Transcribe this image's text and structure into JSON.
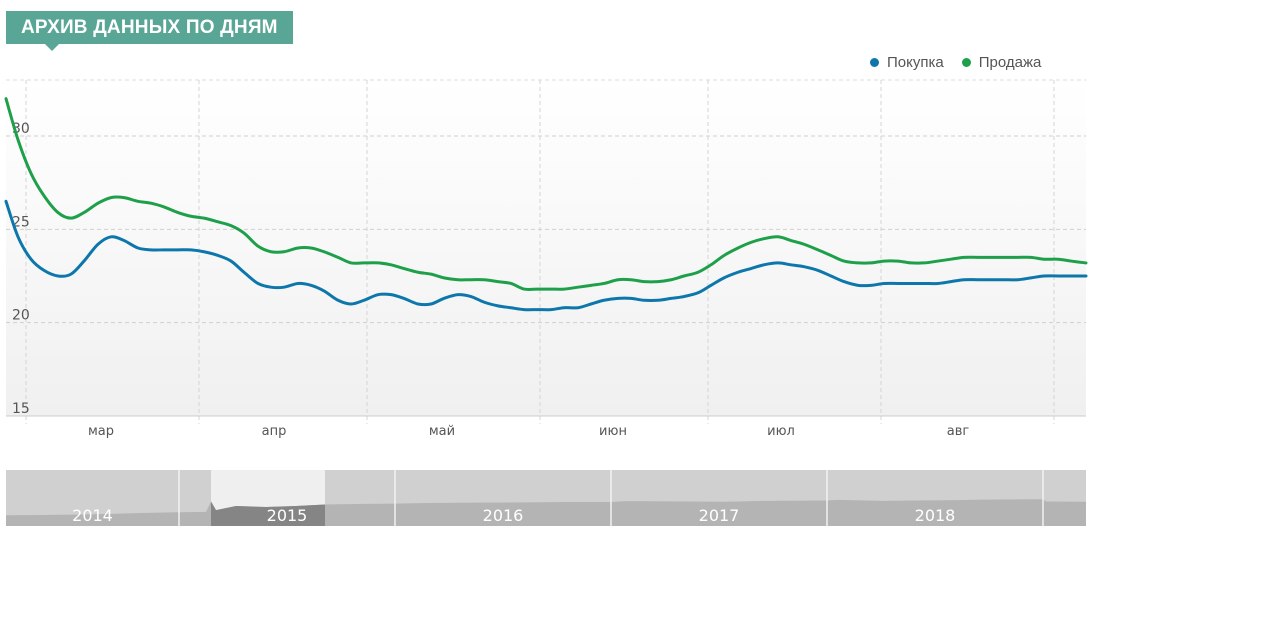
{
  "header": {
    "title": "АРХИВ ДАННЫХ ПО ДНЯМ"
  },
  "colors": {
    "accent": "#5aa696",
    "buy": "#0d77ab",
    "sell": "#1ea04a"
  },
  "chart_data": {
    "type": "line",
    "ylim": [
      15,
      33
    ],
    "yticks": [
      "15",
      "20",
      "25",
      "30"
    ],
    "xlim": [
      0,
      1080
    ],
    "grid": true,
    "legend_position": "top-right",
    "month_ticks": [
      {
        "label": "мар",
        "x": 20,
        "label_x": 101
      },
      {
        "label": "апр",
        "x": 193,
        "label_x": 274
      },
      {
        "label": "май",
        "x": 361,
        "label_x": 442
      },
      {
        "label": "июн",
        "x": 534,
        "label_x": 613
      },
      {
        "label": "июл",
        "x": 702,
        "label_x": 781
      },
      {
        "label": "авг",
        "x": 875,
        "label_x": 958
      },
      {
        "label": "",
        "x": 1048,
        "label_x": 0
      }
    ],
    "series": [
      {
        "name": "Покупка",
        "color": "#0d77ab",
        "points": [
          [
            0,
            26.5
          ],
          [
            12,
            24.6
          ],
          [
            25,
            23.4
          ],
          [
            38,
            22.8
          ],
          [
            52,
            22.5
          ],
          [
            65,
            22.6
          ],
          [
            78,
            23.3
          ],
          [
            92,
            24.2
          ],
          [
            105,
            24.6
          ],
          [
            118,
            24.4
          ],
          [
            132,
            24.0
          ],
          [
            145,
            23.9
          ],
          [
            158,
            23.9
          ],
          [
            172,
            23.9
          ],
          [
            185,
            23.9
          ],
          [
            198,
            23.8
          ],
          [
            212,
            23.6
          ],
          [
            225,
            23.3
          ],
          [
            238,
            22.7
          ],
          [
            252,
            22.1
          ],
          [
            265,
            21.9
          ],
          [
            278,
            21.9
          ],
          [
            292,
            22.1
          ],
          [
            305,
            22.0
          ],
          [
            318,
            21.7
          ],
          [
            332,
            21.2
          ],
          [
            345,
            21.0
          ],
          [
            358,
            21.2
          ],
          [
            372,
            21.5
          ],
          [
            385,
            21.5
          ],
          [
            398,
            21.3
          ],
          [
            412,
            21.0
          ],
          [
            425,
            21.0
          ],
          [
            438,
            21.3
          ],
          [
            452,
            21.5
          ],
          [
            465,
            21.4
          ],
          [
            478,
            21.1
          ],
          [
            492,
            20.9
          ],
          [
            505,
            20.8
          ],
          [
            518,
            20.7
          ],
          [
            532,
            20.7
          ],
          [
            545,
            20.7
          ],
          [
            558,
            20.8
          ],
          [
            572,
            20.8
          ],
          [
            585,
            21.0
          ],
          [
            598,
            21.2
          ],
          [
            612,
            21.3
          ],
          [
            625,
            21.3
          ],
          [
            638,
            21.2
          ],
          [
            652,
            21.2
          ],
          [
            665,
            21.3
          ],
          [
            678,
            21.4
          ],
          [
            692,
            21.6
          ],
          [
            705,
            22.0
          ],
          [
            718,
            22.4
          ],
          [
            732,
            22.7
          ],
          [
            745,
            22.9
          ],
          [
            758,
            23.1
          ],
          [
            772,
            23.2
          ],
          [
            785,
            23.1
          ],
          [
            798,
            23.0
          ],
          [
            812,
            22.8
          ],
          [
            825,
            22.5
          ],
          [
            838,
            22.2
          ],
          [
            852,
            22.0
          ],
          [
            865,
            22.0
          ],
          [
            878,
            22.1
          ],
          [
            892,
            22.1
          ],
          [
            905,
            22.1
          ],
          [
            918,
            22.1
          ],
          [
            932,
            22.1
          ],
          [
            945,
            22.2
          ],
          [
            958,
            22.3
          ],
          [
            972,
            22.3
          ],
          [
            985,
            22.3
          ],
          [
            998,
            22.3
          ],
          [
            1012,
            22.3
          ],
          [
            1025,
            22.4
          ],
          [
            1038,
            22.5
          ],
          [
            1052,
            22.5
          ],
          [
            1065,
            22.5
          ],
          [
            1080,
            22.5
          ]
        ]
      },
      {
        "name": "Продажа",
        "color": "#1ea04a",
        "points": [
          [
            0,
            32.0
          ],
          [
            12,
            29.8
          ],
          [
            25,
            28.0
          ],
          [
            38,
            26.8
          ],
          [
            52,
            25.9
          ],
          [
            65,
            25.6
          ],
          [
            78,
            25.9
          ],
          [
            92,
            26.4
          ],
          [
            105,
            26.7
          ],
          [
            118,
            26.7
          ],
          [
            132,
            26.5
          ],
          [
            145,
            26.4
          ],
          [
            158,
            26.2
          ],
          [
            172,
            25.9
          ],
          [
            185,
            25.7
          ],
          [
            198,
            25.6
          ],
          [
            212,
            25.4
          ],
          [
            225,
            25.2
          ],
          [
            238,
            24.8
          ],
          [
            252,
            24.1
          ],
          [
            265,
            23.8
          ],
          [
            278,
            23.8
          ],
          [
            292,
            24.0
          ],
          [
            305,
            24.0
          ],
          [
            318,
            23.8
          ],
          [
            332,
            23.5
          ],
          [
            345,
            23.2
          ],
          [
            358,
            23.2
          ],
          [
            372,
            23.2
          ],
          [
            385,
            23.1
          ],
          [
            398,
            22.9
          ],
          [
            412,
            22.7
          ],
          [
            425,
            22.6
          ],
          [
            438,
            22.4
          ],
          [
            452,
            22.3
          ],
          [
            465,
            22.3
          ],
          [
            478,
            22.3
          ],
          [
            492,
            22.2
          ],
          [
            505,
            22.1
          ],
          [
            518,
            21.8
          ],
          [
            532,
            21.8
          ],
          [
            545,
            21.8
          ],
          [
            558,
            21.8
          ],
          [
            572,
            21.9
          ],
          [
            585,
            22.0
          ],
          [
            598,
            22.1
          ],
          [
            612,
            22.3
          ],
          [
            625,
            22.3
          ],
          [
            638,
            22.2
          ],
          [
            652,
            22.2
          ],
          [
            665,
            22.3
          ],
          [
            678,
            22.5
          ],
          [
            692,
            22.7
          ],
          [
            705,
            23.1
          ],
          [
            718,
            23.6
          ],
          [
            732,
            24.0
          ],
          [
            745,
            24.3
          ],
          [
            758,
            24.5
          ],
          [
            772,
            24.6
          ],
          [
            785,
            24.4
          ],
          [
            798,
            24.2
          ],
          [
            812,
            23.9
          ],
          [
            825,
            23.6
          ],
          [
            838,
            23.3
          ],
          [
            852,
            23.2
          ],
          [
            865,
            23.2
          ],
          [
            878,
            23.3
          ],
          [
            892,
            23.3
          ],
          [
            905,
            23.2
          ],
          [
            918,
            23.2
          ],
          [
            932,
            23.3
          ],
          [
            945,
            23.4
          ],
          [
            958,
            23.5
          ],
          [
            972,
            23.5
          ],
          [
            985,
            23.5
          ],
          [
            998,
            23.5
          ],
          [
            1012,
            23.5
          ],
          [
            1025,
            23.5
          ],
          [
            1038,
            23.4
          ],
          [
            1052,
            23.4
          ],
          [
            1065,
            23.3
          ],
          [
            1080,
            23.2
          ]
        ]
      }
    ],
    "navigator": {
      "years": [
        "2014",
        "2015",
        "2016",
        "2017",
        "2018"
      ],
      "year_bounds": [
        0,
        173,
        389,
        605,
        821,
        1037,
        1080
      ],
      "selection": [
        205,
        319
      ],
      "profile": [
        [
          0,
          0.25
        ],
        [
          40,
          0.26
        ],
        [
          80,
          0.28
        ],
        [
          110,
          0.3
        ],
        [
          140,
          0.33
        ],
        [
          173,
          0.35
        ],
        [
          200,
          0.36
        ],
        [
          205,
          0.7
        ],
        [
          210,
          0.42
        ],
        [
          230,
          0.55
        ],
        [
          260,
          0.52
        ],
        [
          290,
          0.55
        ],
        [
          319,
          0.6
        ],
        [
          360,
          0.62
        ],
        [
          389,
          0.63
        ],
        [
          420,
          0.65
        ],
        [
          470,
          0.66
        ],
        [
          520,
          0.67
        ],
        [
          560,
          0.68
        ],
        [
          605,
          0.68
        ],
        [
          620,
          0.71
        ],
        [
          680,
          0.7
        ],
        [
          720,
          0.69
        ],
        [
          760,
          0.72
        ],
        [
          821,
          0.73
        ],
        [
          830,
          0.75
        ],
        [
          880,
          0.72
        ],
        [
          940,
          0.74
        ],
        [
          980,
          0.76
        ],
        [
          1037,
          0.77
        ],
        [
          1040,
          0.7
        ],
        [
          1080,
          0.69
        ]
      ]
    }
  }
}
